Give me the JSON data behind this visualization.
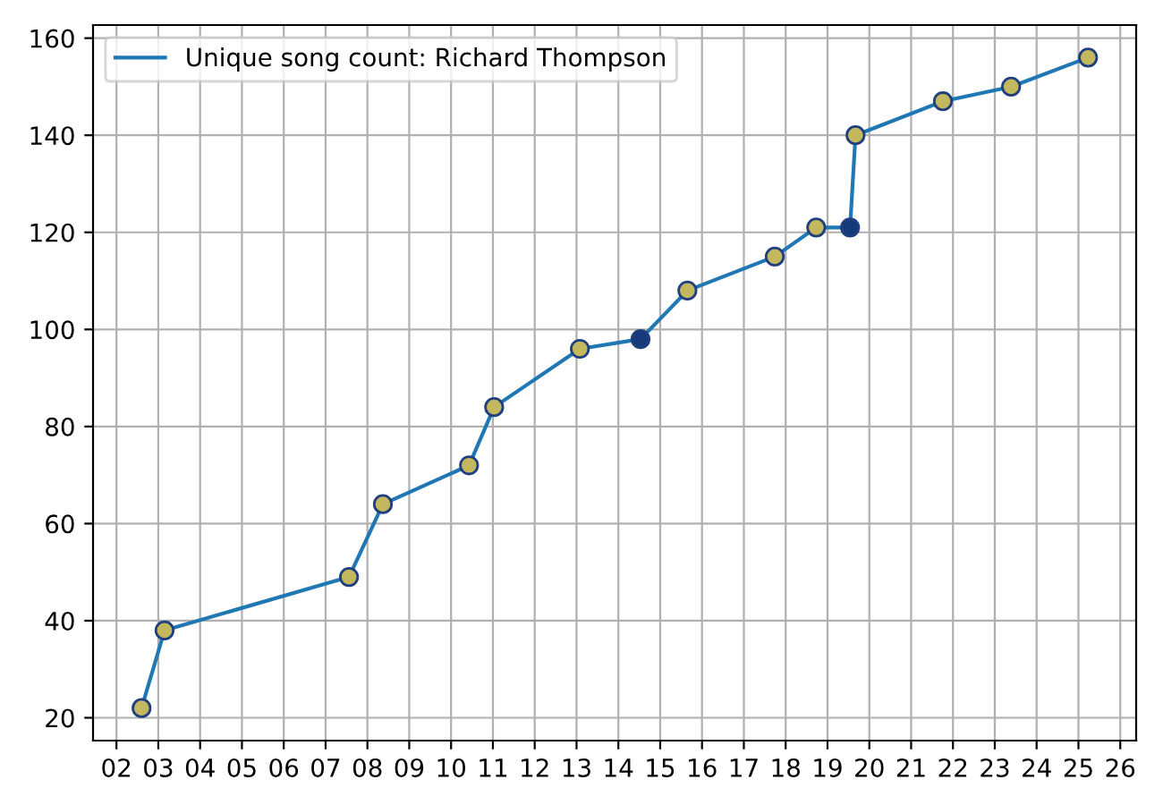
{
  "chart_data": {
    "type": "line",
    "x": [
      2002.6,
      2003.15,
      2007.56,
      2008.37,
      2010.43,
      2011.03,
      2013.08,
      2014.53,
      2015.65,
      2017.74,
      2018.73,
      2019.54,
      2019.67,
      2021.76,
      2023.39,
      2025.23
    ],
    "series": [
      {
        "name": "Unique song count: Richard Thompson",
        "color": "#1f77b4",
        "values": [
          22,
          38,
          49,
          64,
          72,
          84,
          96,
          98,
          108,
          115,
          121,
          121,
          140,
          147,
          150,
          156
        ],
        "colors": [
          "#c4b85e",
          "#c4b85e",
          "#c4b85e",
          "#c4b85e",
          "#c4b85e",
          "#c4b85e",
          "#c4b85e",
          "#163a7a",
          "#c4b85e",
          "#c4b85e",
          "#c4b85e",
          "#163a7a",
          "#c4b85e",
          "#c4b85e",
          "#c4b85e",
          "#c4b85e"
        ]
      }
    ],
    "marker": "circle",
    "line_style": "solid",
    "grid": true,
    "legend": "top left",
    "xlim": [
      2001.44,
      2026.38
    ],
    "xticks": [
      {
        "value": 2002,
        "label": "02"
      },
      {
        "value": 2003,
        "label": "03"
      },
      {
        "value": 2004,
        "label": "04"
      },
      {
        "value": 2005,
        "label": "05"
      },
      {
        "value": 2006,
        "label": "06"
      },
      {
        "value": 2007,
        "label": "07"
      },
      {
        "value": 2008,
        "label": "08"
      },
      {
        "value": 2009,
        "label": "09"
      },
      {
        "value": 2010,
        "label": "10"
      },
      {
        "value": 2011,
        "label": "11"
      },
      {
        "value": 2012,
        "label": "12"
      },
      {
        "value": 2013,
        "label": "13"
      },
      {
        "value": 2014,
        "label": "14"
      },
      {
        "value": 2015,
        "label": "15"
      },
      {
        "value": 2016,
        "label": "16"
      },
      {
        "value": 2017,
        "label": "17"
      },
      {
        "value": 2018,
        "label": "18"
      },
      {
        "value": 2019,
        "label": "19"
      },
      {
        "value": 2020,
        "label": "20"
      },
      {
        "value": 2021,
        "label": "21"
      },
      {
        "value": 2022,
        "label": "22"
      },
      {
        "value": 2023,
        "label": "23"
      },
      {
        "value": 2024,
        "label": "24"
      },
      {
        "value": 2025,
        "label": "25"
      },
      {
        "value": 2026,
        "label": "26"
      }
    ],
    "ylim": [
      15.3,
      162.7
    ],
    "yticks": [
      20,
      40,
      60,
      80,
      100,
      120,
      140,
      160
    ]
  }
}
